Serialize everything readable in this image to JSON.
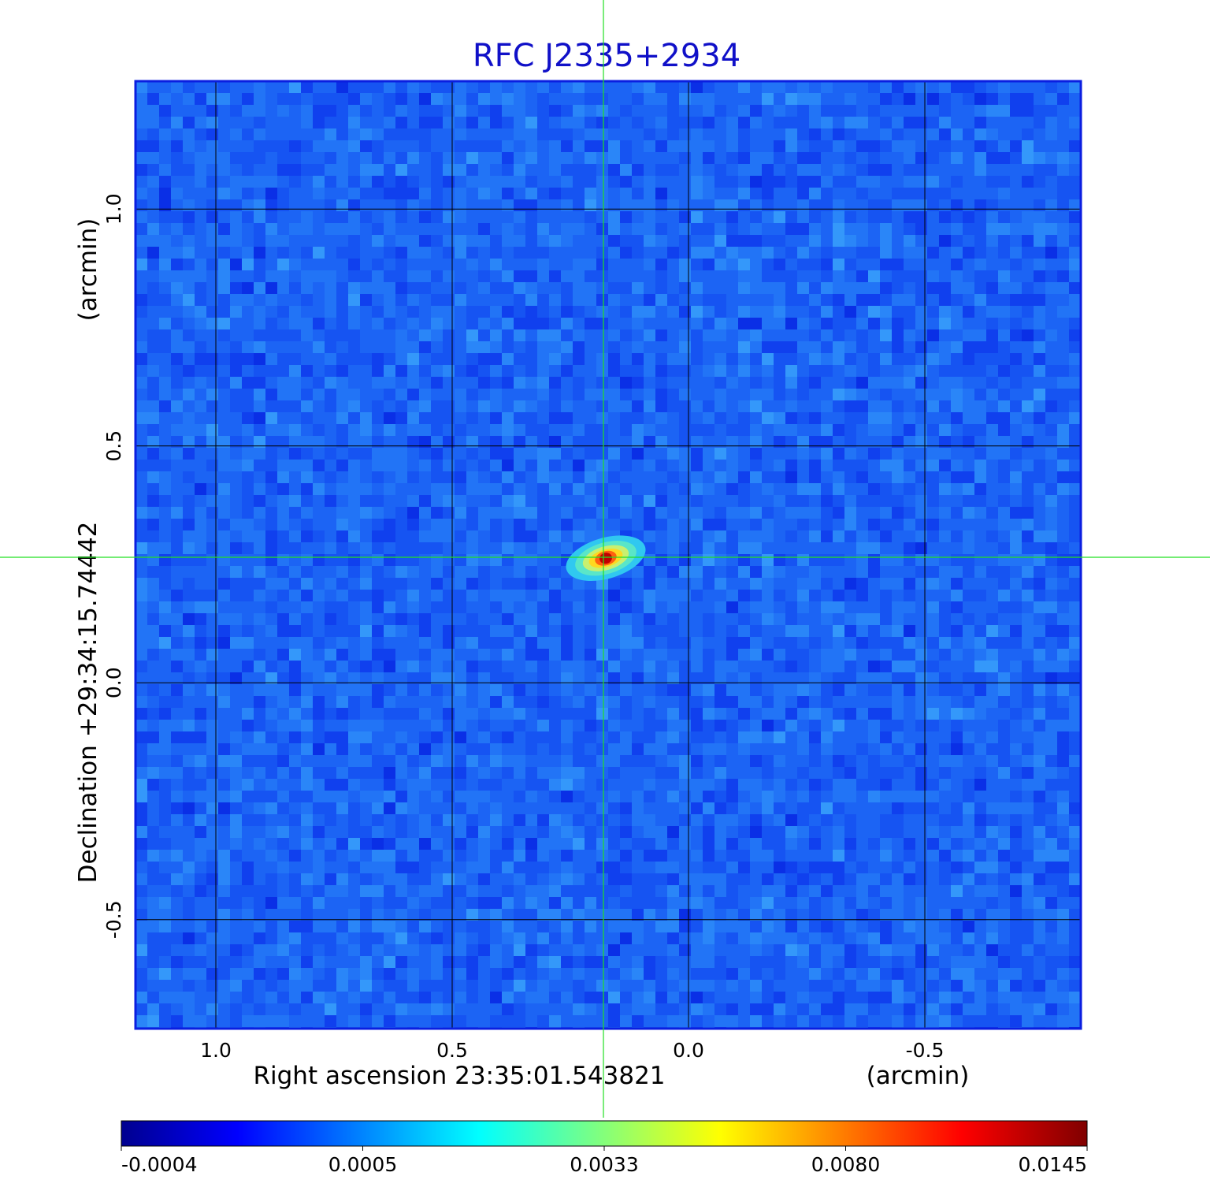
{
  "chart_data": {
    "type": "heatmap",
    "title": "RFC J2335+2934",
    "xlabel": "Right ascension  23:35:01.543821",
    "ylabel": "Declination  +29:34:15.74442",
    "x_unit": "(arcmin)",
    "y_unit": "(arcmin)",
    "xlim": [
      1.17,
      -0.83
    ],
    "ylim": [
      -0.73,
      1.27
    ],
    "xticks": [
      {
        "value": 1.0,
        "label": "1.0"
      },
      {
        "value": 0.5,
        "label": "0.5"
      },
      {
        "value": 0.0,
        "label": "0.0"
      },
      {
        "value": -0.5,
        "label": "-0.5"
      }
    ],
    "yticks": [
      {
        "value": 1.0,
        "label": "1.0"
      },
      {
        "value": 0.5,
        "label": "0.5"
      },
      {
        "value": 0.0,
        "label": "0.0"
      },
      {
        "value": -0.5,
        "label": "-0.5"
      }
    ],
    "grid": true,
    "crosshair": {
      "x": 0.18,
      "y": 0.265
    },
    "source": {
      "x": 0.175,
      "y": 0.263,
      "peak": 0.0145
    },
    "colormap": "jet",
    "colorbar": {
      "position": "bottom",
      "ticks": [
        "-0.0004",
        "0.0005",
        "0.0033",
        "0.0080",
        "0.0145"
      ],
      "stops": [
        "#00008f",
        "#0000ff",
        "#00ffff",
        "#ffff00",
        "#ff0000",
        "#800000"
      ]
    },
    "colors": {
      "title": "#1010c8",
      "frame": "#0a1ee0",
      "grid": "#000000",
      "crosshair": "#22e022",
      "background_blue": "#1e64f0"
    }
  }
}
